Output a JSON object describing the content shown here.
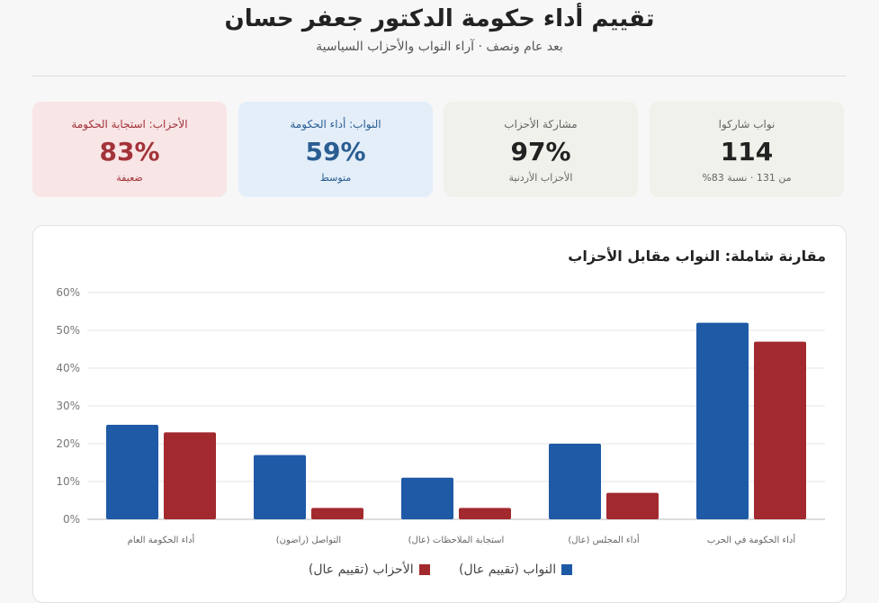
{
  "header": {
    "title": "تقييم أداء حكومة الدكتور جعفر حسان",
    "subtitle": "بعد عام ونصف · آراء النواب والأحزاب السياسية"
  },
  "cards": [
    {
      "label": "نواب شاركوا",
      "value": "114",
      "sub": "من 131 · نسبة 83%"
    },
    {
      "label": "مشاركة الأحزاب",
      "value": "97%",
      "sub": "الأحزاب الأردنية"
    },
    {
      "label": "النواب: أداء الحكومة",
      "value": "59%",
      "sub": "متوسط"
    },
    {
      "label": "الأحزاب: استجابة الحكومة",
      "value": "83%",
      "sub": "ضعيفة"
    }
  ],
  "colors": {
    "deputies": "#1f5aa6",
    "parties": "#a2292e",
    "red_card": "#a23338",
    "blue_card": "#2a5d91"
  },
  "chart_data": {
    "type": "bar",
    "title": "مقارنة شاملة: النواب مقابل الأحزاب",
    "categories": [
      "أداء الحكومة في الحرب",
      "أداء المجلس (عال)",
      "استجابة الملاحظات (عال)",
      "التواصل (راضون)",
      "أداء الحكومة العام"
    ],
    "series": [
      {
        "name": "النواب (تقييم عال)",
        "values": [
          52,
          20,
          11,
          17,
          25
        ]
      },
      {
        "name": "الأحزاب (تقييم عال)",
        "values": [
          47,
          7,
          3,
          3,
          23
        ]
      }
    ],
    "ylim": [
      0,
      60
    ],
    "yticks": [
      "0%",
      "10%",
      "20%",
      "30%",
      "40%",
      "50%",
      "60%"
    ],
    "grid": true,
    "legend": "bottom"
  }
}
